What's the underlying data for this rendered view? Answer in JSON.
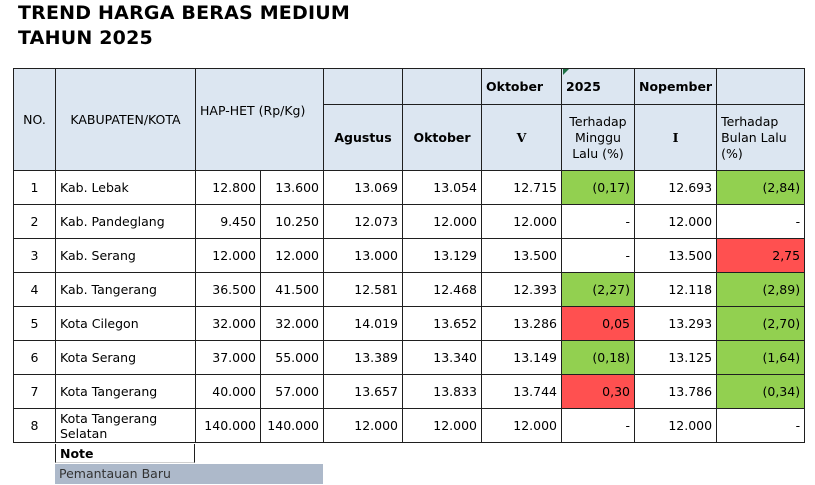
{
  "title": {
    "line1": "TREND HARGA BERAS MEDIUM",
    "line2": "TAHUN 2025"
  },
  "header": {
    "no": "NO.",
    "kabupaten": "KABUPATEN/KOTA",
    "hap_het": "HAP-HET (Rp/Kg)",
    "oktober_top": "Oktober",
    "year": "2025",
    "nopember_top": "Nopember",
    "agustus": "Agustus",
    "oktober": "Oktober",
    "oktober_week": "V",
    "terhadap_minggu": "Terhadap Minggu Lalu (%)",
    "nopember_week": "I",
    "terhadap_bulan": "Terhadap Bulan Lalu (%)"
  },
  "rows": [
    {
      "no": "1",
      "name": "Kab. Lebak",
      "hap1": "12.800",
      "hap2": "13.600",
      "agustus": "13.069",
      "oktober": "13.054",
      "okt_v": "12.715",
      "minggu": "(0,17)",
      "minggu_status": "green",
      "nop_i": "12.693",
      "bulan": "(2,84)",
      "bulan_status": "green"
    },
    {
      "no": "2",
      "name": "Kab. Pandeglang",
      "hap1": "9.450",
      "hap2": "10.250",
      "agustus": "12.073",
      "oktober": "12.000",
      "okt_v": "12.000",
      "minggu": "-",
      "minggu_status": "none",
      "nop_i": "12.000",
      "bulan": "-",
      "bulan_status": "none"
    },
    {
      "no": "3",
      "name": "Kab. Serang",
      "hap1": "12.000",
      "hap2": "12.000",
      "agustus": "13.000",
      "oktober": "13.129",
      "okt_v": "13.500",
      "minggu": "-",
      "minggu_status": "none",
      "nop_i": "13.500",
      "bulan": "2,75",
      "bulan_status": "red"
    },
    {
      "no": "4",
      "name": "Kab. Tangerang",
      "hap1": "36.500",
      "hap2": "41.500",
      "agustus": "12.581",
      "oktober": "12.468",
      "okt_v": "12.393",
      "minggu": "(2,27)",
      "minggu_status": "green",
      "nop_i": "12.118",
      "bulan": "(2,89)",
      "bulan_status": "green"
    },
    {
      "no": "5",
      "name": "Kota Cilegon",
      "hap1": "32.000",
      "hap2": "32.000",
      "agustus": "14.019",
      "oktober": "13.652",
      "okt_v": "13.286",
      "minggu": "0,05",
      "minggu_status": "red",
      "nop_i": "13.293",
      "bulan": "(2,70)",
      "bulan_status": "green"
    },
    {
      "no": "6",
      "name": "Kota Serang",
      "hap1": "37.000",
      "hap2": "55.000",
      "agustus": "13.389",
      "oktober": "13.340",
      "okt_v": "13.149",
      "minggu": "(0,18)",
      "minggu_status": "green",
      "nop_i": "13.125",
      "bulan": "(1,64)",
      "bulan_status": "green"
    },
    {
      "no": "7",
      "name": "Kota Tangerang",
      "hap1": "40.000",
      "hap2": "57.000",
      "agustus": "13.657",
      "oktober": "13.833",
      "okt_v": "13.744",
      "minggu": "0,30",
      "minggu_status": "red",
      "nop_i": "13.786",
      "bulan": "(0,34)",
      "bulan_status": "green"
    },
    {
      "no": "8",
      "name": "Kota Tangerang Selatan",
      "hap1": "140.000",
      "hap2": "140.000",
      "agustus": "12.000",
      "oktober": "12.000",
      "okt_v": "12.000",
      "minggu": "-",
      "minggu_status": "none",
      "nop_i": "12.000",
      "bulan": "-",
      "bulan_status": "none"
    }
  ],
  "note": {
    "label": "Note",
    "legend": "Pemantauan Baru"
  },
  "colors": {
    "header_bg": "#dce6f1",
    "green": "#92d050",
    "red": "#ff5050",
    "legend_gray": "#adb9ca"
  }
}
